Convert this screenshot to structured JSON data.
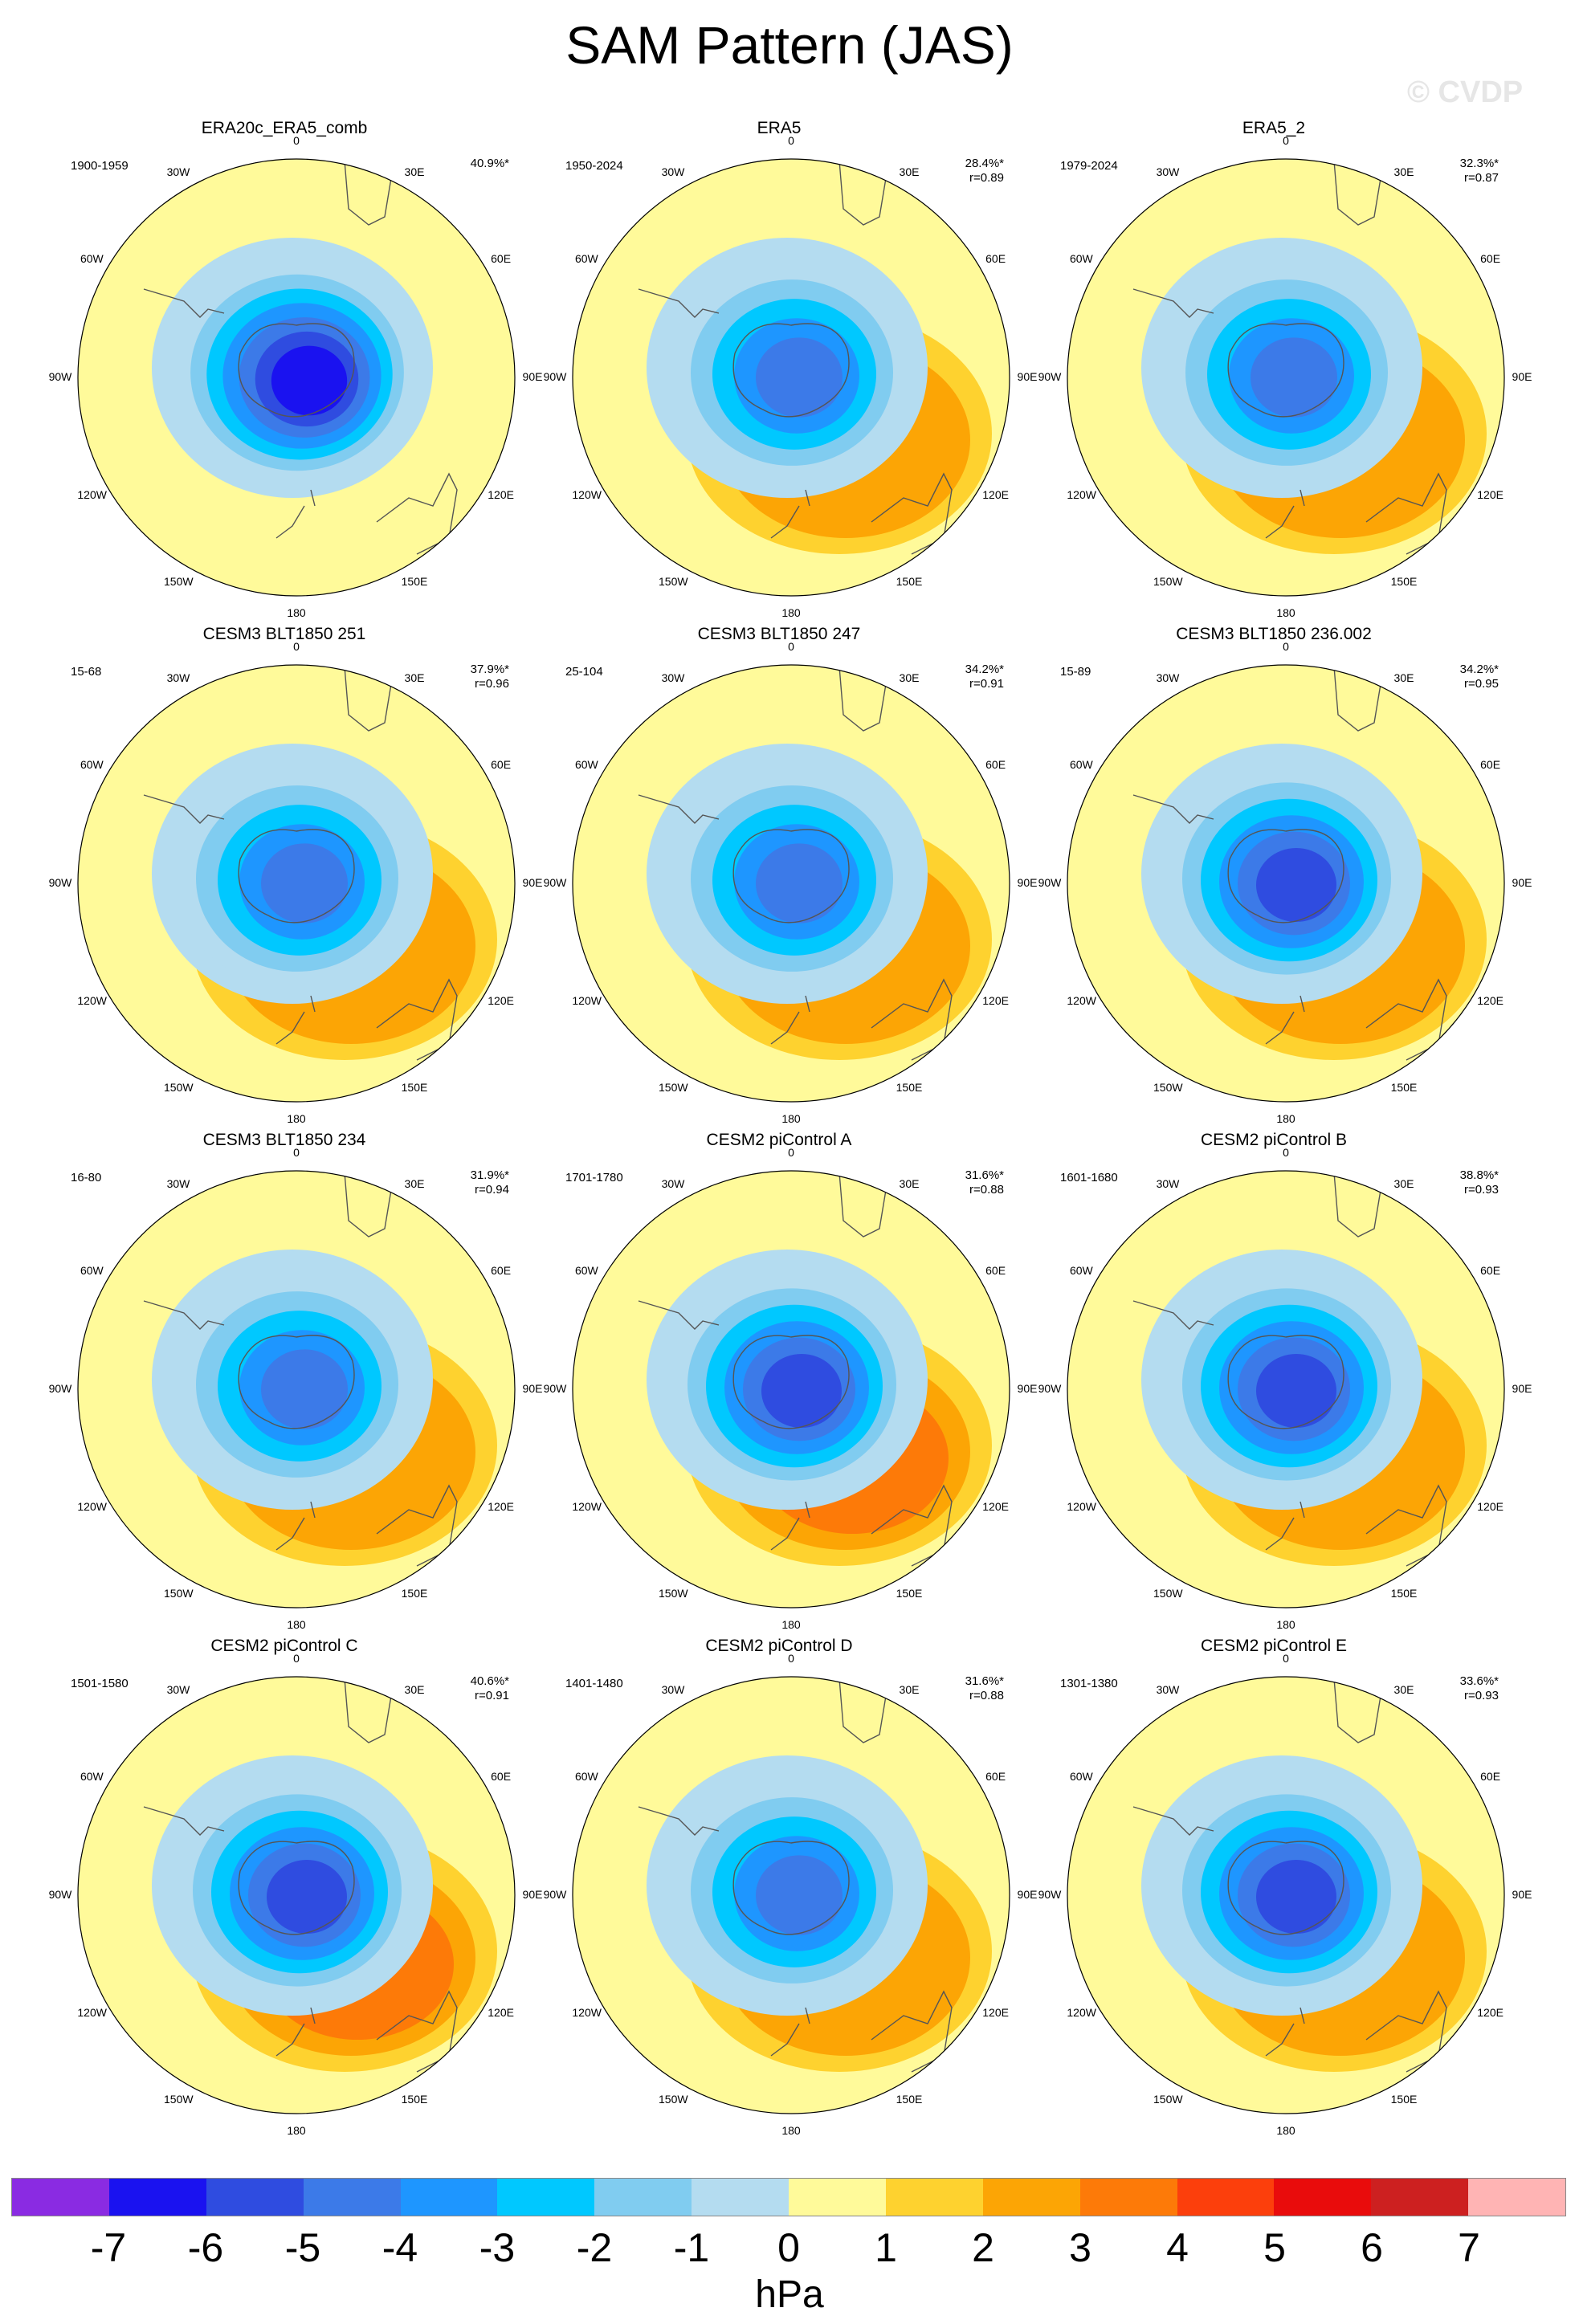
{
  "title": "SAM Pattern (JAS)",
  "watermark": "© CVDP",
  "lon_labels": [
    "0",
    "30E",
    "60E",
    "90E",
    "120E",
    "150E",
    "180",
    "150W",
    "120W",
    "90W",
    "60W",
    "30W"
  ],
  "panels": [
    {
      "name": "ERA20c_ERA5_comb",
      "period": "1900-1959",
      "pct": "40.9%*",
      "r": "",
      "centre": -6.2,
      "ring_east": 0.6,
      "ring_south": 0.4
    },
    {
      "name": "ERA5",
      "period": "1950-2024",
      "pct": "28.4%*",
      "r": "r=0.89",
      "centre": -4.3,
      "ring_east": 2.3,
      "ring_south": 1.7
    },
    {
      "name": "ERA5_2",
      "period": "1979-2024",
      "pct": "32.3%*",
      "r": "r=0.87",
      "centre": -4.4,
      "ring_east": 2.6,
      "ring_south": 1.6
    },
    {
      "name": "CESM3 BLT1850 251",
      "period": "15-68",
      "pct": "37.9%*",
      "r": "r=0.96",
      "centre": -4.6,
      "ring_east": 2.3,
      "ring_south": 1.8
    },
    {
      "name": "CESM3 BLT1850 247",
      "period": "25-104",
      "pct": "34.2%*",
      "r": "r=0.91",
      "centre": -4.8,
      "ring_east": 2.1,
      "ring_south": 2.4
    },
    {
      "name": "CESM3 BLT1850 236.002",
      "period": "15-89",
      "pct": "34.2%*",
      "r": "r=0.95",
      "centre": -5.2,
      "ring_east": 2.2,
      "ring_south": 1.6
    },
    {
      "name": "CESM3 BLT1850 234",
      "period": "16-80",
      "pct": "31.9%*",
      "r": "r=0.94",
      "centre": -4.4,
      "ring_east": 2.3,
      "ring_south": 1.6
    },
    {
      "name": "CESM2 piControl A",
      "period": "1701-1780",
      "pct": "31.6%*",
      "r": "r=0.88",
      "centre": -5.3,
      "ring_east": 2.2,
      "ring_south": 3.2
    },
    {
      "name": "CESM2 piControl B",
      "period": "1601-1680",
      "pct": "38.8%*",
      "r": "r=0.93",
      "centre": -5.4,
      "ring_east": 1.6,
      "ring_south": 2.7
    },
    {
      "name": "CESM2 piControl C",
      "period": "1501-1580",
      "pct": "40.6%*",
      "r": "r=0.91",
      "centre": -5.3,
      "ring_east": 3.2,
      "ring_south": 2.6
    },
    {
      "name": "CESM2 piControl D",
      "period": "1401-1480",
      "pct": "31.6%*",
      "r": "r=0.88",
      "centre": -4.4,
      "ring_east": 2.4,
      "ring_south": 2.1
    },
    {
      "name": "CESM2 piControl E",
      "period": "1301-1380",
      "pct": "33.6%*",
      "r": "r=0.93",
      "centre": -5.2,
      "ring_east": 1.8,
      "ring_south": 2.2
    }
  ],
  "colorbar": {
    "ticks": [
      "-7",
      "-6",
      "-5",
      "-4",
      "-3",
      "-2",
      "-1",
      "0",
      "1",
      "2",
      "3",
      "4",
      "5",
      "6",
      "7"
    ],
    "colors": [
      "#8a2be2",
      "#1a12f0",
      "#2f4ce0",
      "#3c7ae8",
      "#1e96ff",
      "#00c8ff",
      "#80ccf0",
      "#b4dcf0",
      "#fffa9a",
      "#fed22f",
      "#fca505",
      "#fd7a08",
      "#fc3f0c",
      "#e90c0c",
      "#cd2020",
      "#ffb4b4"
    ],
    "units": "hPa"
  }
}
